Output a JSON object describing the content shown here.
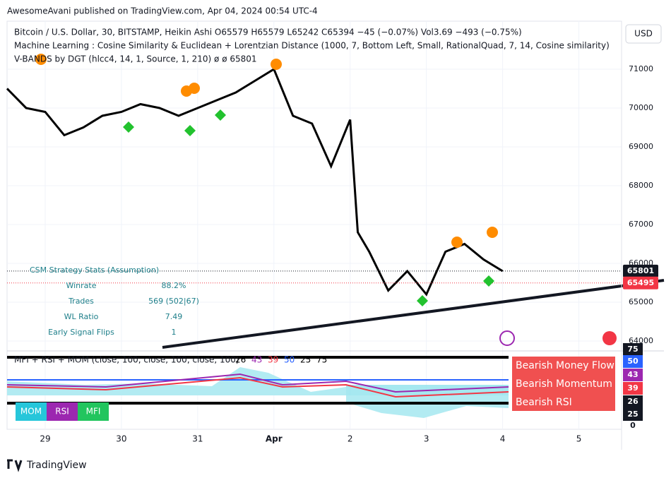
{
  "header": {
    "published": "AwesomeAvani published on TradingView.com, Apr 04, 2024 00:54 UTC-4",
    "currency_button": "USD"
  },
  "legend": [
    "Bitcoin / U.S. Dollar, 30, BITSTAMP, Heikin Ashi  O65579  H65579  L65242  C65394  −45 (−0.07%)  Vol3.69  −493 (−0.75%)",
    "Machine Learning : Cosine Similarity & Euclidean + Lorentzian Distance (1000, 7, Bottom Left, Small, RationalQuad, 7, 14, Cosine similarity)",
    "V-BANDS by DGT (hlcc4, 14, 1, Source, 1, 210)  ø  ø  65801"
  ],
  "stats": {
    "title": "CSM Strategy Stats (Assumption)",
    "rows": [
      [
        "Winrate",
        "88.2%"
      ],
      [
        "Trades",
        "569 (502|67)"
      ],
      [
        "WL Ratio",
        "7.49"
      ],
      [
        "Early Signal Flips",
        "1"
      ]
    ]
  },
  "chart_data": {
    "type": "line",
    "x": [
      -0.5,
      -0.25,
      0,
      0.25,
      0.5,
      0.75,
      1,
      1.25,
      1.5,
      1.75,
      2,
      2.25,
      2.5,
      2.75,
      3,
      3.25,
      3.5,
      3.75,
      4,
      4.1,
      4.25,
      4.5,
      4.75,
      5,
      5.25,
      5.5,
      5.75,
      6
    ],
    "values": [
      70500,
      70000,
      69900,
      69300,
      69500,
      69800,
      69900,
      70100,
      70000,
      69800,
      70000,
      70200,
      70400,
      70700,
      71000,
      69800,
      69600,
      68500,
      69700,
      66800,
      66300,
      65300,
      65800,
      65200,
      66300,
      66500,
      66100,
      65800
    ],
    "color": "#000000",
    "xlim": [
      -0.5,
      7.56
    ],
    "ylim": [
      63745,
      72236
    ],
    "xticks": [
      {
        "value": 0,
        "label": "29"
      },
      {
        "value": 1,
        "label": "30"
      },
      {
        "value": 2,
        "label": "31"
      },
      {
        "value": 3,
        "label": "Apr"
      },
      {
        "value": 4,
        "label": "2"
      },
      {
        "value": 5,
        "label": "3"
      },
      {
        "value": 6,
        "label": "4"
      },
      {
        "value": 7,
        "label": "5"
      }
    ],
    "yticks": [
      64000,
      65000,
      66000,
      67000,
      68000,
      69000,
      70000,
      71000
    ],
    "grid": true,
    "price_labels": [
      65801,
      65495
    ]
  },
  "oscillator": {
    "title": "MFI + RSI + MOM (close, 100, close, 100, close, 100)",
    "values": [
      26,
      43,
      39,
      50,
      25,
      75
    ],
    "value_colors": [
      "#000000",
      "#9c27b0",
      "#f23645",
      "#2962ff",
      "#000000",
      "#000000"
    ],
    "axis": [
      75,
      50,
      43,
      39,
      26,
      25,
      0
    ],
    "signals": [
      "Bearish Money Flow",
      "Bearish Momentum",
      "Bearish RSI"
    ],
    "buttons": [
      "MOM",
      "RSI",
      "MFI"
    ]
  },
  "footer": {
    "brand": "TradingView"
  }
}
